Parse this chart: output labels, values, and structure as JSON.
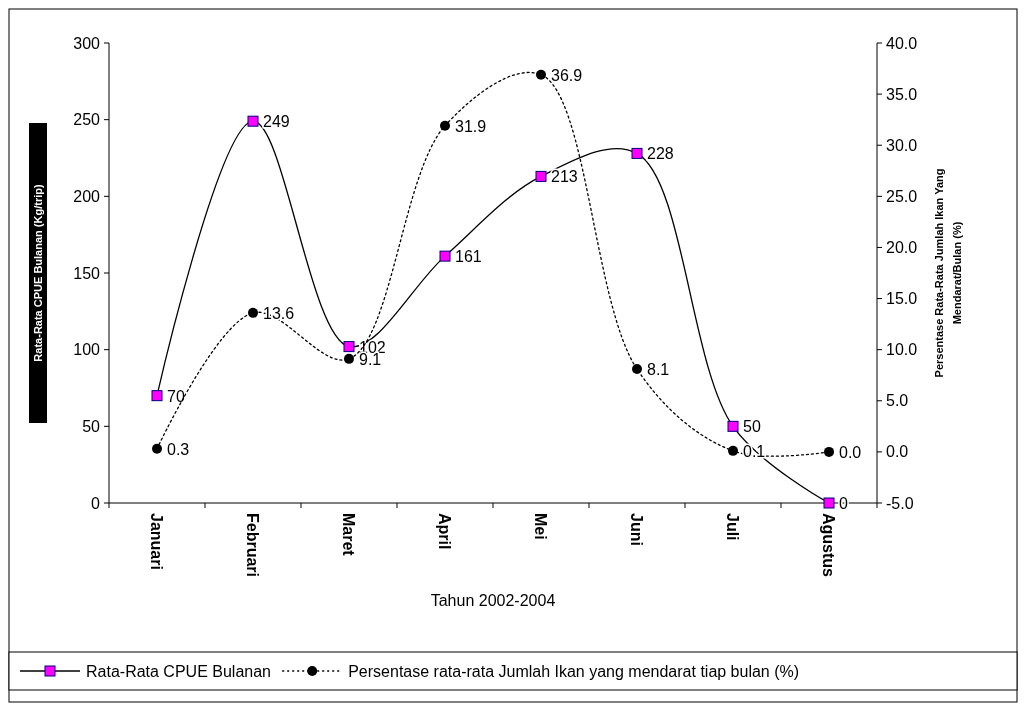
{
  "chart_data": {
    "type": "line",
    "xlabel": "Tahun 2002-2004",
    "ylabel": "Rata-Rata CPUE Bulanan (Kg/trip)",
    "y2label": "Persentase Rata-Rata Jumlah Ikan Yang Mendarat/Bulan (%)",
    "categories": [
      "Januari",
      "Februari",
      "Maret",
      "April",
      "Mei",
      "Juni",
      "Juli",
      "Agustus"
    ],
    "ylim": [
      0,
      300
    ],
    "yticks": [
      0,
      50,
      100,
      150,
      200,
      250,
      300
    ],
    "y2lim": [
      -5,
      40
    ],
    "y2ticks": [
      {
        "value": -5,
        "label": "-5.0"
      },
      {
        "value": 0,
        "label": "0.0"
      },
      {
        "value": 5,
        "label": "5.0"
      },
      {
        "value": 10,
        "label": "10.0"
      },
      {
        "value": 15,
        "label": "15.0"
      },
      {
        "value": 20,
        "label": "20.0"
      },
      {
        "value": 25,
        "label": "25.0"
      },
      {
        "value": 30,
        "label": "30.0"
      },
      {
        "value": 35,
        "label": "35.0"
      },
      {
        "value": 40,
        "label": "40.0"
      }
    ],
    "legend": "bottom",
    "grid": false,
    "series": [
      {
        "name": "Rata-Rata CPUE Bulanan",
        "color": "#ff00ff",
        "marker": "square",
        "line_style": "solid",
        "values": [
          70,
          249,
          102,
          161,
          213,
          228,
          50,
          0
        ],
        "value_labels": [
          "70",
          "249",
          "102",
          "161",
          "213",
          "228",
          "50",
          "0"
        ]
      },
      {
        "name": "Persentase rata-rata Jumlah Ikan yang mendarat tiap bulan (%)",
        "color": "#000000",
        "marker": "circle",
        "line_style": "dotted",
        "axis": "y2",
        "values": [
          0.3,
          13.6,
          9.1,
          31.9,
          36.9,
          8.1,
          0.1,
          0.0
        ],
        "value_labels": [
          "0.3",
          "13.6",
          "9.1",
          "31.9",
          "36.9",
          "8.1",
          "0.1",
          "0.0"
        ]
      }
    ]
  }
}
